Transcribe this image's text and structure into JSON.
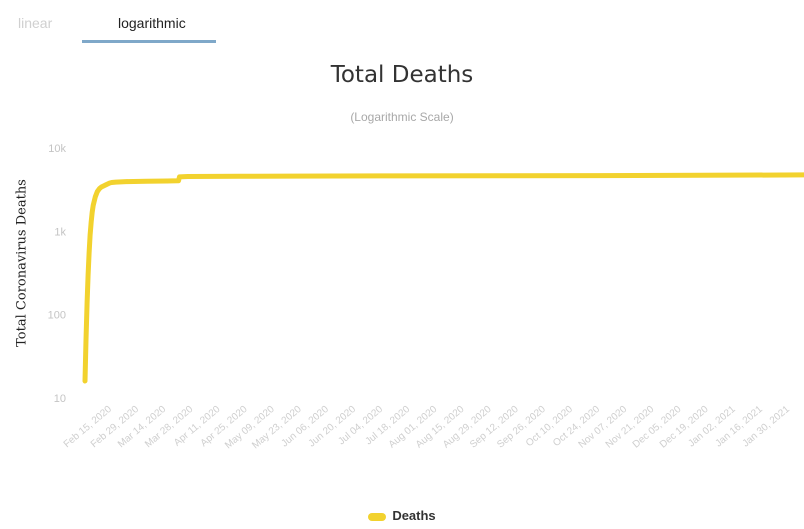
{
  "tabs": [
    {
      "label": "linear",
      "active": false
    },
    {
      "label": "logarithmic",
      "active": true
    }
  ],
  "chart_data": {
    "type": "line",
    "title": "Total Deaths",
    "subtitle": "(Logarithmic Scale)",
    "ylabel": "Total Coronavirus Deaths",
    "xlabel": "",
    "y_scale": "log",
    "y_ticks": [
      {
        "value": 10,
        "label": "10"
      },
      {
        "value": 100,
        "label": "100"
      },
      {
        "value": 1000,
        "label": "1k"
      },
      {
        "value": 10000,
        "label": "10k"
      }
    ],
    "ylim": [
      10,
      10000
    ],
    "x_tick_labels": [
      "Feb 15, 2020",
      "Feb 29, 2020",
      "Mar 14, 2020",
      "Mar 28, 2020",
      "Apr 11, 2020",
      "Apr 25, 2020",
      "May 09, 2020",
      "May 23, 2020",
      "Jun 06, 2020",
      "Jun 20, 2020",
      "Jul 04, 2020",
      "Jul 18, 2020",
      "Aug 01, 2020",
      "Aug 15, 2020",
      "Aug 29, 2020",
      "Sep 12, 2020",
      "Sep 26, 2020",
      "Oct 10, 2020",
      "Oct 24, 2020",
      "Nov 07, 2020",
      "Nov 21, 2020",
      "Dec 05, 2020",
      "Dec 19, 2020",
      "Jan 02, 2021",
      "Jan 16, 2021",
      "Jan 30, 2021"
    ],
    "grid": false,
    "legend": {
      "position": "bottom",
      "entries": [
        "Deaths"
      ]
    },
    "series": [
      {
        "name": "Deaths",
        "color": "#f2d22e",
        "x": [
          0,
          1,
          2,
          3,
          4,
          5,
          6,
          7,
          8,
          10,
          12,
          14,
          16,
          18,
          20,
          22,
          24,
          26,
          30,
          40,
          60,
          70,
          80,
          85,
          91,
          92,
          100,
          150,
          200,
          300,
          400,
          500,
          600,
          700
        ],
        "y": [
          16,
          50,
          140,
          300,
          550,
          900,
          1300,
          1700,
          2050,
          2600,
          3000,
          3250,
          3400,
          3500,
          3600,
          3700,
          3800,
          3850,
          3900,
          3950,
          4000,
          4010,
          4020,
          4030,
          4040,
          4500,
          4550,
          4580,
          4600,
          4620,
          4640,
          4660,
          4700,
          4750
        ]
      }
    ]
  }
}
